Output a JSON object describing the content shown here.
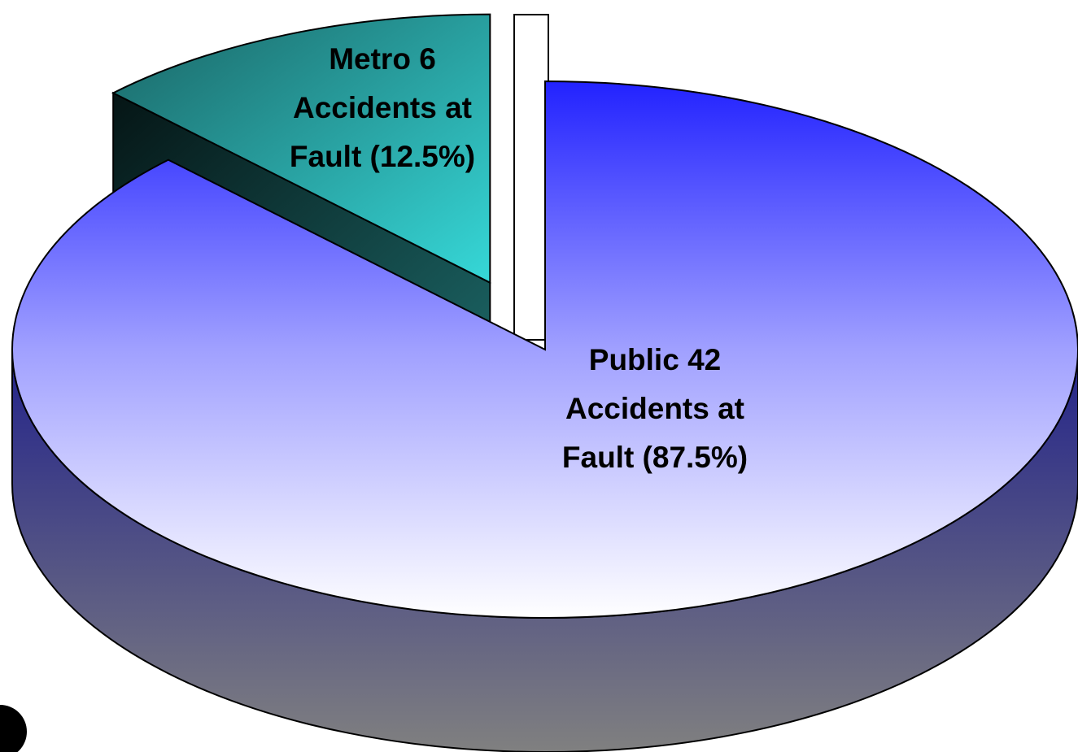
{
  "chart_data": {
    "type": "pie",
    "values": [
      12.5,
      87.5
    ],
    "value_labels": [
      [
        "Metro 6",
        "Accidents at",
        "Fault (12.5%)"
      ],
      [
        "Public 42",
        "Accidents  at",
        "Fault  (87.5%)"
      ]
    ],
    "colors": [
      "#2ec8c8",
      "#3a3aff"
    ],
    "explode": [
      true,
      false
    ]
  }
}
